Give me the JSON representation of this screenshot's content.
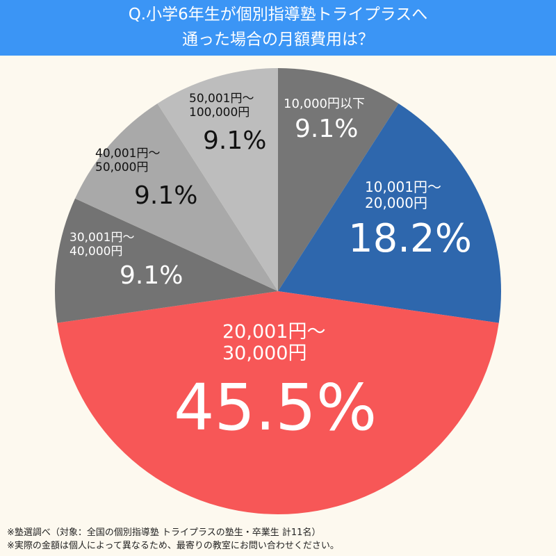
{
  "header": {
    "title_line1": "Q.小学6年生が個別指導塾トライプラスへ",
    "title_line2": "通った場合の月額費用は？",
    "bg_color": "#3b95f5"
  },
  "chart_data": {
    "type": "pie",
    "title": "Q.小学6年生が個別指導塾トライプラスへ通った場合の月額費用は？",
    "start_angle": "top (12 o'clock), clockwise",
    "categories": [
      "10,000円以下",
      "10,001円〜20,000円",
      "20,001円〜30,000円",
      "30,001円〜40,000円",
      "40,001円〜50,000円",
      "50,001円〜100,000円"
    ],
    "values": [
      9.1,
      18.2,
      45.5,
      9.1,
      9.1,
      9.1
    ],
    "labels": [
      "9.1%",
      "18.2%",
      "45.5%",
      "9.1%",
      "9.1%",
      "9.1%"
    ],
    "colors": [
      "#767676",
      "#2e67ad",
      "#f75757",
      "#737373",
      "#a9a9a9",
      "#bdbdbd"
    ],
    "sample_size": "計11名"
  },
  "slices": [
    {
      "range_line1": "10,000円以下",
      "range_line2": "",
      "pct": "9.1%"
    },
    {
      "range_line1": "10,001円〜",
      "range_line2": "20,000円",
      "pct": "18.2%"
    },
    {
      "range_line1": "20,001円〜",
      "range_line2": "30,000円",
      "pct": "45.5%"
    },
    {
      "range_line1": "30,001円〜",
      "range_line2": "40,000円",
      "pct": "9.1%"
    },
    {
      "range_line1": "40,001円〜",
      "range_line2": "50,000円",
      "pct": "9.1%"
    },
    {
      "range_line1": "50,001円〜",
      "range_line2": "100,000円",
      "pct": "9.1%"
    }
  ],
  "footer": {
    "note1": "※塾選調べ（対象：全国の個別指導塾 トライプラスの塾生・卒業生 計11名）",
    "note2": "※実際の金額は個人によって異なるため、最寄りの教室にお問い合わせください。"
  }
}
